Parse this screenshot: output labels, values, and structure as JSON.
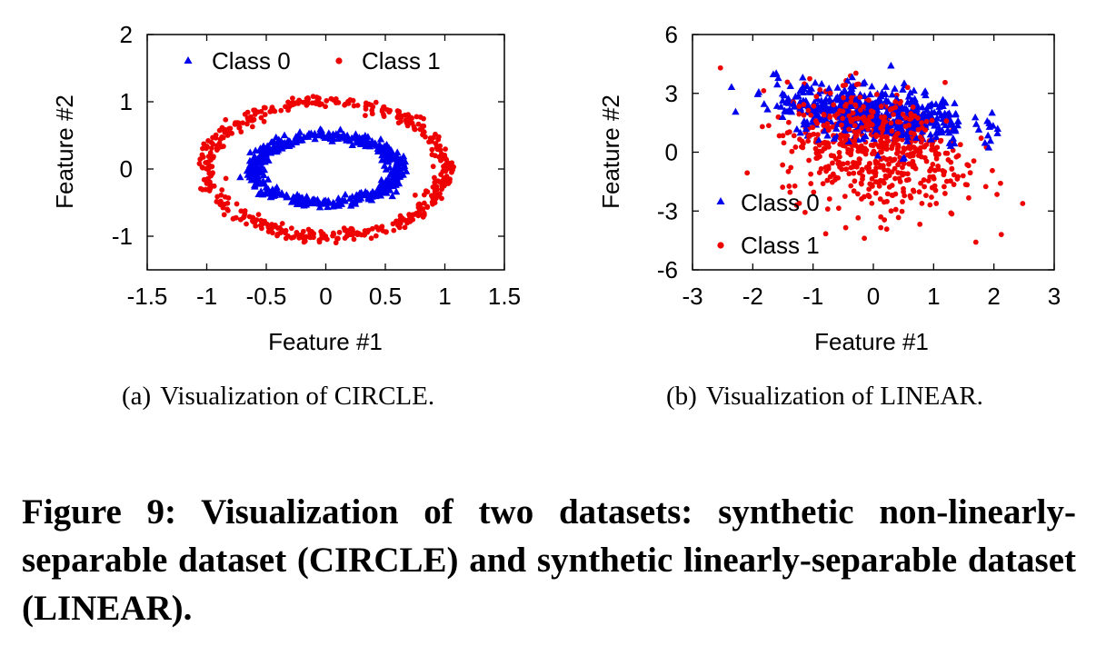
{
  "figure": {
    "caption": "Figure 9: Visualization of two datasets: synthetic non-linearly-separable dataset (CIRCLE) and synthetic linearly-separable dataset (LINEAR).",
    "subcaptions": [
      {
        "tag": "(a)",
        "text": "Visualization of CIRCLE."
      },
      {
        "tag": "(b)",
        "text": "Visualization of LINEAR."
      }
    ]
  },
  "colors": {
    "class0": "#0000ee",
    "class1": "#ee0000",
    "axis": "#000000",
    "grid": "#d0d0d0"
  },
  "chart_data": [
    {
      "type": "scatter",
      "title": "",
      "xlabel": "Feature #1",
      "ylabel": "Feature #2",
      "xlim": [
        -1.5,
        1.5
      ],
      "ylim": [
        -1.5,
        2
      ],
      "xticks": [
        "-1.5",
        "-1",
        "-0.5",
        "0",
        "0.5",
        "1",
        "1.5"
      ],
      "yticks": [
        "-1",
        "0",
        "1",
        "2"
      ],
      "legend": "top",
      "grid": false,
      "series": [
        {
          "name": "Class 0",
          "marker": "triangle",
          "description": "noisy ring of approx. radius 0.5 (x-radius ~0.6, y-radius ~0.5) centered at origin",
          "approx_radius": 0.5,
          "count": 500
        },
        {
          "name": "Class 1",
          "marker": "circle",
          "description": "noisy ring of approx. radius 1.0 centered at origin",
          "approx_radius": 1.0,
          "count": 500
        }
      ]
    },
    {
      "type": "scatter",
      "title": "",
      "xlabel": "Feature #1",
      "ylabel": "Feature #2",
      "xlim": [
        -3,
        3
      ],
      "ylim": [
        -6,
        6
      ],
      "xticks": [
        "-3",
        "-2",
        "-1",
        "0",
        "1",
        "2",
        "3"
      ],
      "yticks": [
        "-6",
        "-3",
        "0",
        "3",
        "6"
      ],
      "legend": "bottom-left",
      "grid": false,
      "series": [
        {
          "name": "Class 0",
          "marker": "triangle",
          "description": "Gaussian cloud centered near (0, 2), x-spread ~0.8, y-spread ~0.8",
          "approx_center": [
            0.0,
            2.0
          ],
          "count": 500
        },
        {
          "name": "Class 1",
          "marker": "circle",
          "description": "Gaussian cloud centered near (0, 0), x-spread ~0.7, y-spread ~1.5",
          "approx_center": [
            0.0,
            0.0
          ],
          "count": 500
        }
      ]
    }
  ]
}
